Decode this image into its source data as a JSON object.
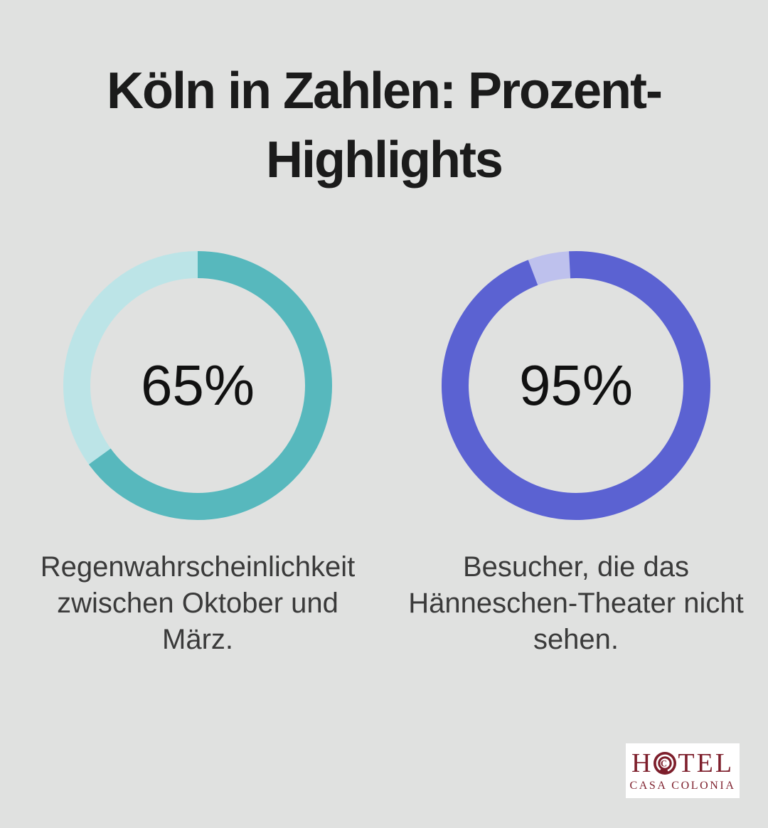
{
  "page": {
    "background_color": "#e0e1e0"
  },
  "title": {
    "text": "Köln in Zahlen: Prozent-Highlights",
    "lines": [
      "Köln in Zahlen: Prozent-",
      "Highlights"
    ],
    "color": "#1b1b1b"
  },
  "chart_data": [
    {
      "type": "pie",
      "subtype": "donut",
      "center_label": "65%",
      "value_percent": 65,
      "caption": "Regenwahrscheinlichkeit zwischen Oktober und März.",
      "caption_lines": [
        "Regenwahrscheinlichkeit",
        "zwischen Oktober und",
        "März."
      ],
      "slices": [
        {
          "value": 65,
          "color": "#57b8bd"
        },
        {
          "value": 35,
          "color": "#bce4e7"
        }
      ],
      "start_angle_deg": 0,
      "direction": "clockwise",
      "legend": "none"
    },
    {
      "type": "pie",
      "subtype": "donut",
      "center_label": "95%",
      "value_percent": 95,
      "caption": "Besucher, die das Hänneschen-Theater nicht sehen.",
      "caption_lines": [
        "Besucher, die das",
        "Hänneschen-Theater nicht",
        "sehen."
      ],
      "slices": [
        {
          "value": 95,
          "color": "#5b62d2"
        },
        {
          "value": 5,
          "color": "#bec1ed"
        }
      ],
      "start_angle_deg": -3,
      "direction": "clockwise",
      "legend": "none"
    }
  ],
  "logo": {
    "line1_before_icon": "H",
    "line1_after_icon": "TEL",
    "line1_full": "HOTEL",
    "line2": "CASA COLONIA",
    "color": "#7d1e2b",
    "background": "#ffffff"
  }
}
